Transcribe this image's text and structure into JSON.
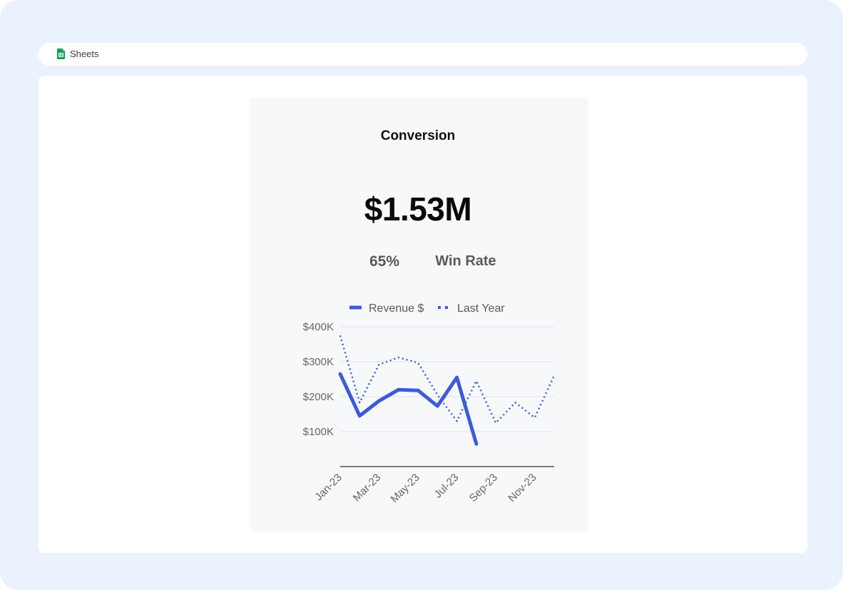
{
  "app": {
    "name": "Sheets",
    "icon": "google-sheets-icon",
    "icon_color": "#0f9d58"
  },
  "card": {
    "title": "Conversion",
    "kpi_value": "$1.53M",
    "win_rate_value": "65%",
    "win_rate_label": "Win Rate"
  },
  "chart_data": {
    "type": "line",
    "x": [
      "Jan-23",
      "Feb-23",
      "Mar-23",
      "Apr-23",
      "May-23",
      "Jun-23",
      "Jul-23",
      "Aug-23",
      "Sep-23",
      "Oct-23",
      "Nov-23",
      "Dec-23"
    ],
    "x_tick_labels": [
      "Jan-23",
      "Mar-23",
      "May-23",
      "Jul-23",
      "Sep-23",
      "Nov-23"
    ],
    "y_tick_labels": [
      "$100K",
      "$200K",
      "$300K",
      "$400K"
    ],
    "y_ticks": [
      100000,
      200000,
      300000,
      400000
    ],
    "ylim": [
      0,
      400000
    ],
    "grid": true,
    "legend_position": "top",
    "series": [
      {
        "name": "Revenue $",
        "style": "solid",
        "color": "#3b5bdb",
        "values": [
          265000,
          145000,
          188000,
          220000,
          218000,
          173000,
          255000,
          65000,
          null,
          null,
          null,
          null
        ]
      },
      {
        "name": "Last Year",
        "style": "dotted",
        "color": "#3b5bdb",
        "values": [
          375000,
          183000,
          292000,
          312000,
          297000,
          205000,
          130000,
          245000,
          125000,
          183000,
          140000,
          260000
        ]
      }
    ]
  }
}
